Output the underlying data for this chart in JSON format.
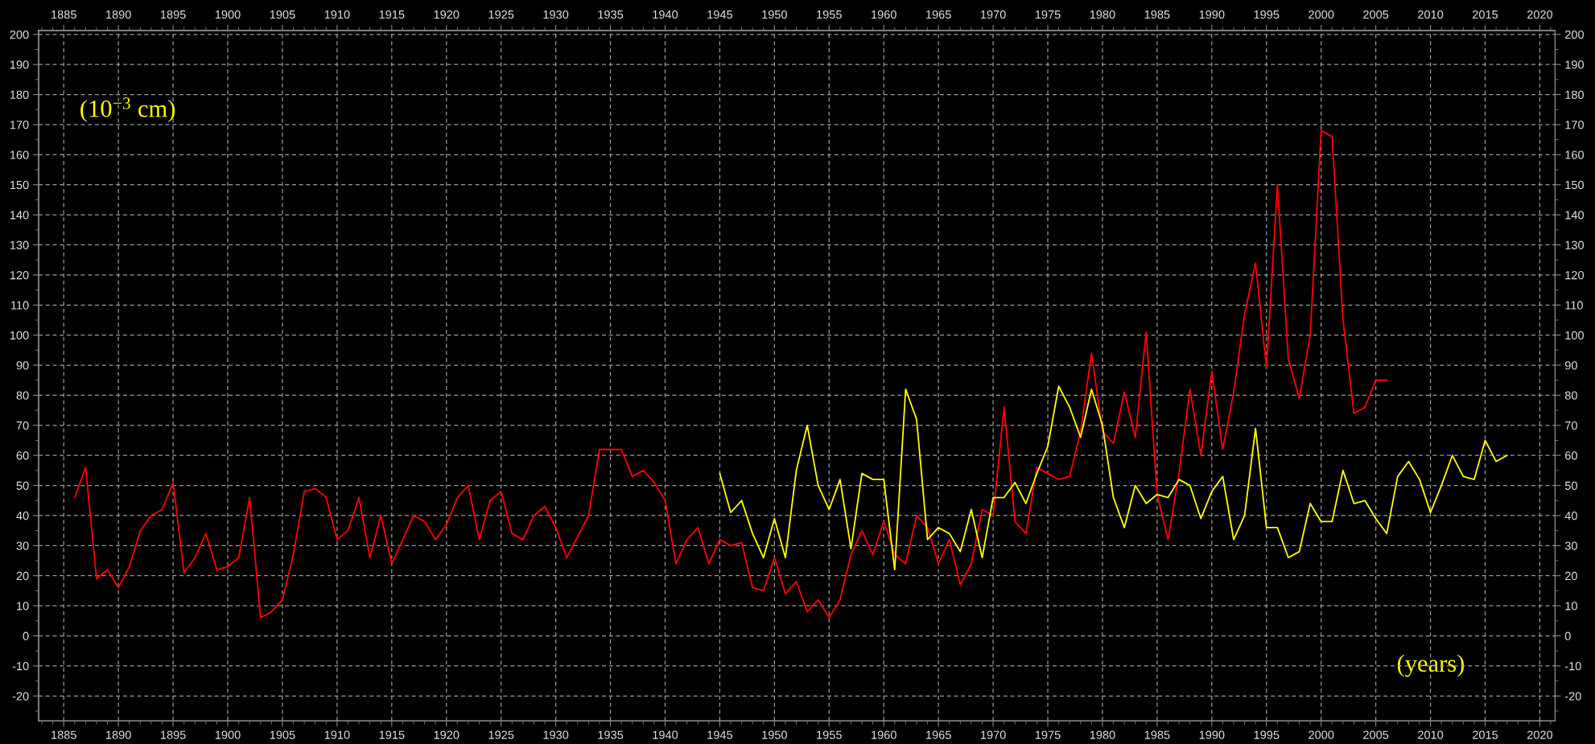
{
  "chart_data": {
    "type": "line",
    "xlabel": "(years)",
    "ylabel": "(10$^{−3}$ cm)",
    "series": [
      {
        "color": "#ff0000",
        "x": [
          1886,
          1887,
          1888,
          1889,
          1890,
          1891,
          1892,
          1893,
          1894,
          1895,
          1896,
          1897,
          1898,
          1899,
          1900,
          1901,
          1902,
          1903,
          1904,
          1905,
          1906,
          1907,
          1908,
          1909,
          1910,
          1911,
          1912,
          1913,
          1914,
          1915,
          1916,
          1917,
          1918,
          1919,
          1920,
          1921,
          1922,
          1923,
          1924,
          1925,
          1926,
          1927,
          1928,
          1929,
          1930,
          1931,
          1932,
          1933,
          1934,
          1935,
          1936,
          1937,
          1938,
          1939,
          1940,
          1941,
          1942,
          1943,
          1944,
          1945,
          1946,
          1947,
          1948,
          1949,
          1950,
          1951,
          1952,
          1953,
          1954,
          1955,
          1956,
          1957,
          1958,
          1959,
          1960,
          1961,
          1962,
          1963,
          1964,
          1965,
          1966,
          1967,
          1968,
          1969,
          1970,
          1971,
          1972,
          1973,
          1974,
          1975,
          1976,
          1977,
          1978,
          1979,
          1980,
          1981,
          1982,
          1983,
          1984,
          1985,
          1986,
          1987,
          1988,
          1989,
          1990,
          1991,
          1992,
          1993,
          1994,
          1995,
          1996,
          1997,
          1998,
          1999,
          2000,
          2001,
          2002,
          2003,
          2004,
          2005,
          2006
        ],
        "values": [
          46,
          56,
          19,
          22,
          16,
          23,
          35,
          40,
          42,
          51,
          21,
          26,
          34,
          22,
          23,
          26,
          46,
          6,
          8,
          12,
          27,
          48,
          49,
          46,
          32,
          35,
          46,
          26,
          40,
          24,
          32,
          40,
          38,
          32,
          37,
          46,
          50,
          32,
          45,
          48,
          34,
          32,
          40,
          43,
          36,
          26,
          33,
          40,
          62,
          62,
          62,
          53,
          55,
          51,
          45,
          24,
          32,
          36,
          24,
          32,
          30,
          31,
          16,
          15,
          26,
          14,
          18,
          8,
          12,
          6,
          12,
          27,
          35,
          27,
          38,
          27,
          24,
          40,
          36,
          24,
          32,
          17,
          24,
          42,
          40,
          76,
          38,
          34,
          56,
          54,
          52,
          53,
          68,
          94,
          68,
          64,
          81,
          66,
          101,
          47,
          32,
          54,
          82,
          60,
          88,
          62,
          81,
          107,
          124,
          89,
          150,
          92,
          79,
          100,
          168,
          166,
          105,
          74,
          76,
          85,
          85
        ]
      },
      {
        "color": "#ffff00",
        "x": [
          1945,
          1946,
          1947,
          1948,
          1949,
          1950,
          1951,
          1952,
          1953,
          1954,
          1955,
          1956,
          1957,
          1958,
          1959,
          1960,
          1961,
          1962,
          1963,
          1964,
          1965,
          1966,
          1967,
          1968,
          1969,
          1970,
          1971,
          1972,
          1973,
          1974,
          1975,
          1976,
          1977,
          1978,
          1979,
          1980,
          1981,
          1982,
          1983,
          1984,
          1985,
          1986,
          1987,
          1988,
          1989,
          1990,
          1991,
          1992,
          1993,
          1994,
          1995,
          1996,
          1997,
          1998,
          1999,
          2000,
          2001,
          2002,
          2003,
          2004,
          2005,
          2006,
          2007,
          2008,
          2009,
          2010,
          2011,
          2012,
          2013,
          2014,
          2015,
          2016,
          2017
        ],
        "values": [
          54,
          41,
          45,
          34,
          26,
          39,
          26,
          55,
          70,
          50,
          42,
          52,
          29,
          54,
          52,
          52,
          22,
          82,
          72,
          32,
          36,
          34,
          28,
          42,
          26,
          46,
          46,
          51,
          44,
          54,
          63,
          83,
          76,
          66,
          82,
          70,
          46,
          36,
          50,
          44,
          47,
          46,
          52,
          50,
          39,
          48,
          53,
          32,
          40,
          69,
          36,
          36,
          26,
          28,
          44,
          38,
          38,
          55,
          44,
          45,
          39,
          34,
          53,
          58,
          52,
          41,
          50,
          60,
          53,
          52,
          65,
          58,
          60
        ]
      }
    ],
    "xlim": [
      1882.7,
      2021.4
    ],
    "xticks": [
      1885,
      1890,
      1895,
      1900,
      1905,
      1910,
      1915,
      1920,
      1925,
      1930,
      1935,
      1940,
      1945,
      1950,
      1955,
      1960,
      1965,
      1970,
      1975,
      1980,
      1985,
      1990,
      1995,
      2000,
      2005,
      2010,
      2015,
      2020
    ],
    "x2lim": [
      1882.7,
      2021.4
    ],
    "x2ticks": [
      1885,
      1890,
      1895,
      1900,
      1905,
      1910,
      1915,
      1920,
      1925,
      1930,
      1935,
      1940,
      1945,
      1950,
      1955,
      1960,
      1965,
      1970,
      1975,
      1980,
      1985,
      1990,
      1995,
      2000,
      2005,
      2010,
      2015,
      2020
    ],
    "ylim": [
      -28.3,
      201.3
    ],
    "yticks": [
      -20,
      -10,
      0,
      10,
      20,
      30,
      40,
      50,
      60,
      70,
      80,
      90,
      100,
      110,
      120,
      130,
      140,
      150,
      160,
      170,
      180,
      190,
      200
    ],
    "y2lim": [
      -28.3,
      201.3
    ],
    "y2ticks": [
      -20,
      -10,
      0,
      10,
      20,
      30,
      40,
      50,
      60,
      70,
      80,
      90,
      100,
      110,
      120,
      130,
      140,
      150,
      160,
      170,
      180,
      190,
      200
    ],
    "grid": true,
    "line_style": "solid",
    "marker": "none"
  }
}
